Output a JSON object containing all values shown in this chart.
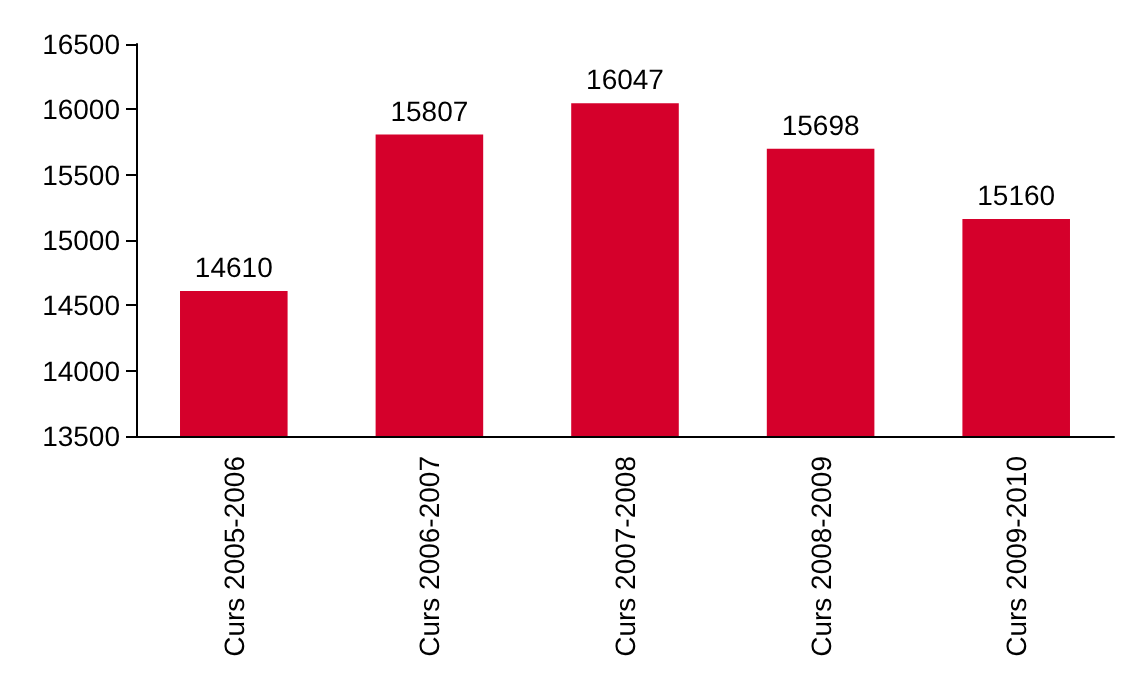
{
  "chart_data": {
    "type": "bar",
    "categories": [
      "Curs 2005-2006",
      "Curs 2006-2007",
      "Curs 2007-2008",
      "Curs 2008-2009",
      "Curs 2009-2010"
    ],
    "values": [
      14610,
      15807,
      16047,
      15698,
      15160
    ],
    "color": "#d5002b",
    "ylim": [
      13500,
      16500
    ],
    "yticks": [
      13500,
      14000,
      14500,
      15000,
      15500,
      16000,
      16500
    ],
    "grid": false,
    "data_labels": true
  }
}
